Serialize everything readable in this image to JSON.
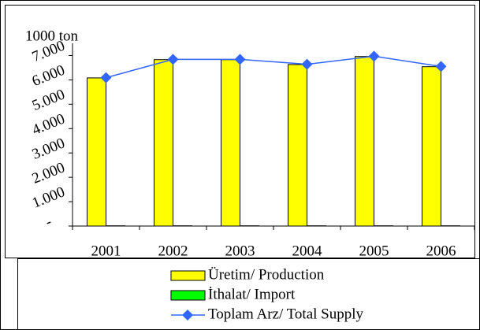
{
  "chart_data": {
    "type": "bar-line",
    "y_label": "1000 ton",
    "categories": [
      "2001",
      "2002",
      "2003",
      "2004",
      "2005",
      "2006"
    ],
    "series": [
      {
        "name": "Üretim/ Production",
        "type": "bar",
        "color": "#ffff00",
        "values": [
          6080,
          6830,
          6830,
          6630,
          6960,
          6540
        ]
      },
      {
        "name": "İthalat/ Import",
        "type": "bar",
        "color": "#00ff00",
        "values": [
          10,
          10,
          10,
          10,
          10,
          10
        ]
      },
      {
        "name": "Toplam Arz/ Total Supply",
        "type": "line",
        "color": "#3366ff",
        "values": [
          6090,
          6840,
          6840,
          6640,
          6970,
          6550
        ]
      }
    ],
    "ylim": [
      0,
      7500
    ],
    "yticks": [
      {
        "value": 0,
        "label": "-"
      },
      {
        "value": 1000,
        "label": "1.000"
      },
      {
        "value": 2000,
        "label": "2.000"
      },
      {
        "value": 3000,
        "label": "3.000"
      },
      {
        "value": 4000,
        "label": "4.000"
      },
      {
        "value": 5000,
        "label": "5.000"
      },
      {
        "value": 6000,
        "label": "6.000"
      },
      {
        "value": 7000,
        "label": "7.000"
      }
    ]
  }
}
